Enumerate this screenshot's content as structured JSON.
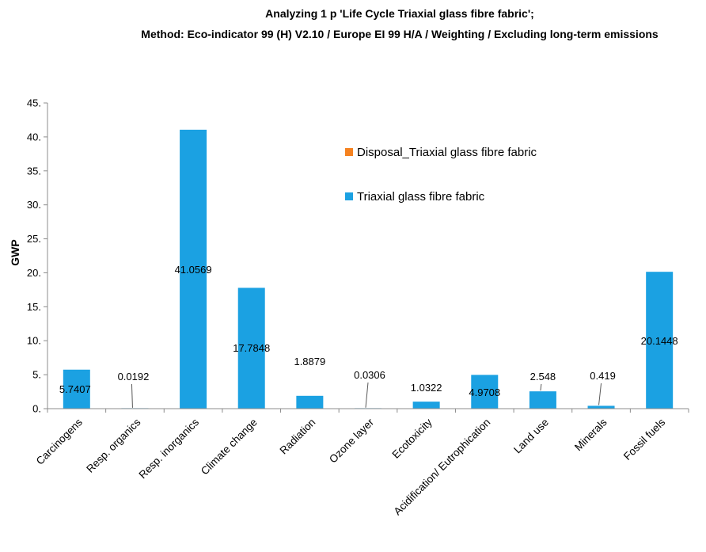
{
  "chart_data": {
    "type": "bar",
    "title": "Analyzing 1 p 'Life Cycle Triaxial glass fibre fabric';",
    "subtitle": "Method: Eco-indicator 99 (H) V2.10 / Europe EI 99 H/A / Weighting / Excluding long-term emissions",
    "xlabel": "",
    "ylabel": "GWP",
    "ylim": [
      0,
      45
    ],
    "yticks": [
      "0.",
      "5.",
      "10.",
      "15.",
      "20.",
      "25.",
      "30.",
      "35.",
      "40.",
      "45."
    ],
    "grid": false,
    "legend_position": "top-center",
    "categories": [
      "Carcinogens",
      "Resp. organics",
      "Resp. inorganics",
      "Climate change",
      "Radiation",
      "Ozone layer",
      "Ecotoxicity",
      "Acidification/ Eutrophication",
      "Land use",
      "Minerals",
      "Fossil fuels"
    ],
    "series": [
      {
        "name": "Disposal_Triaxial glass fibre fabric",
        "color": "#f58220",
        "values": [
          0,
          0,
          0,
          0,
          0,
          0,
          0,
          0,
          0,
          0,
          0
        ]
      },
      {
        "name": "Triaxial glass fibre fabric",
        "color": "#1ba1e2",
        "values": [
          5.7407,
          0.0192,
          41.0569,
          17.7848,
          1.8879,
          0.0306,
          1.0322,
          4.9708,
          2.548,
          0.419,
          20.1448
        ]
      }
    ],
    "data_labels": [
      "5.7407",
      "0.0192",
      "41.0569",
      "17.7848",
      "1.8879",
      "0.0306",
      "1.0322",
      "4.9708",
      "2.548",
      "0.419",
      "20.1448"
    ]
  }
}
